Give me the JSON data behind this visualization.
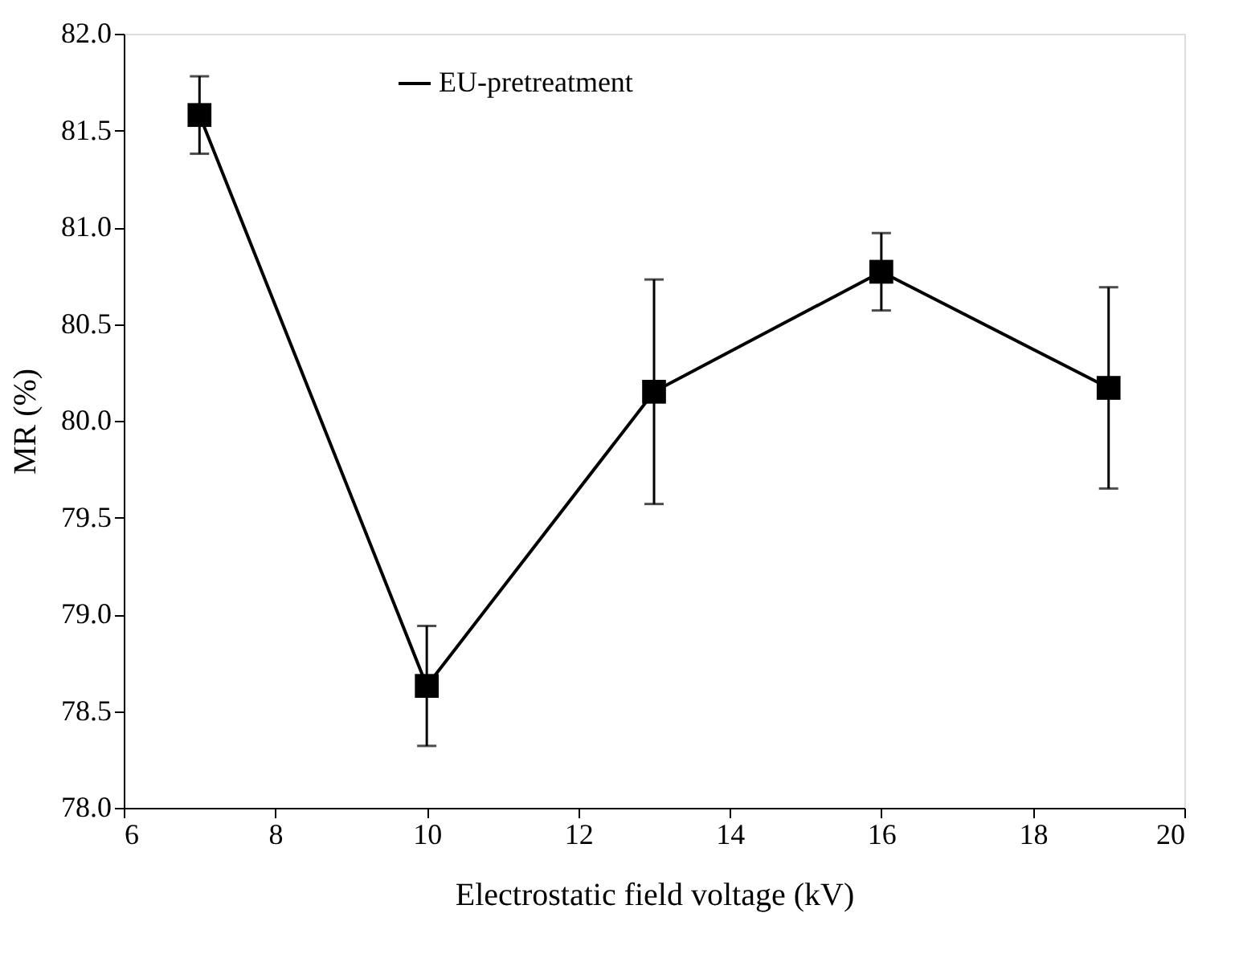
{
  "chart_data": {
    "type": "line",
    "xlabel": "Electrostatic field voltage (kV)",
    "ylabel": "MR (%)",
    "x": [
      7,
      10,
      13,
      16,
      19
    ],
    "series": [
      {
        "name": "EU-pretreatment",
        "color": "#000000",
        "values": [
          81.58,
          78.63,
          80.15,
          80.77,
          80.17
        ],
        "errors": [
          0.2,
          0.31,
          0.58,
          0.2,
          0.52
        ]
      }
    ],
    "xlim": [
      6,
      20
    ],
    "xticks": [
      6,
      8,
      10,
      12,
      14,
      16,
      18,
      20
    ],
    "ylim": [
      78.0,
      82.0
    ],
    "yticks": [
      {
        "value": 78,
        "label": "78.0"
      },
      {
        "value": 78.5,
        "label": "78.5"
      },
      {
        "value": 79,
        "label": "79.0"
      },
      {
        "value": 79.5,
        "label": "79.5"
      },
      {
        "value": 80,
        "label": "80.0"
      },
      {
        "value": 80.5,
        "label": "80.5"
      },
      {
        "value": 81,
        "label": "81.0"
      },
      {
        "value": 81.5,
        "label": "81.5"
      },
      {
        "value": 82,
        "label": "82.0"
      }
    ],
    "legend": "top",
    "marker": "square",
    "line_style": "solid",
    "grid": false
  }
}
